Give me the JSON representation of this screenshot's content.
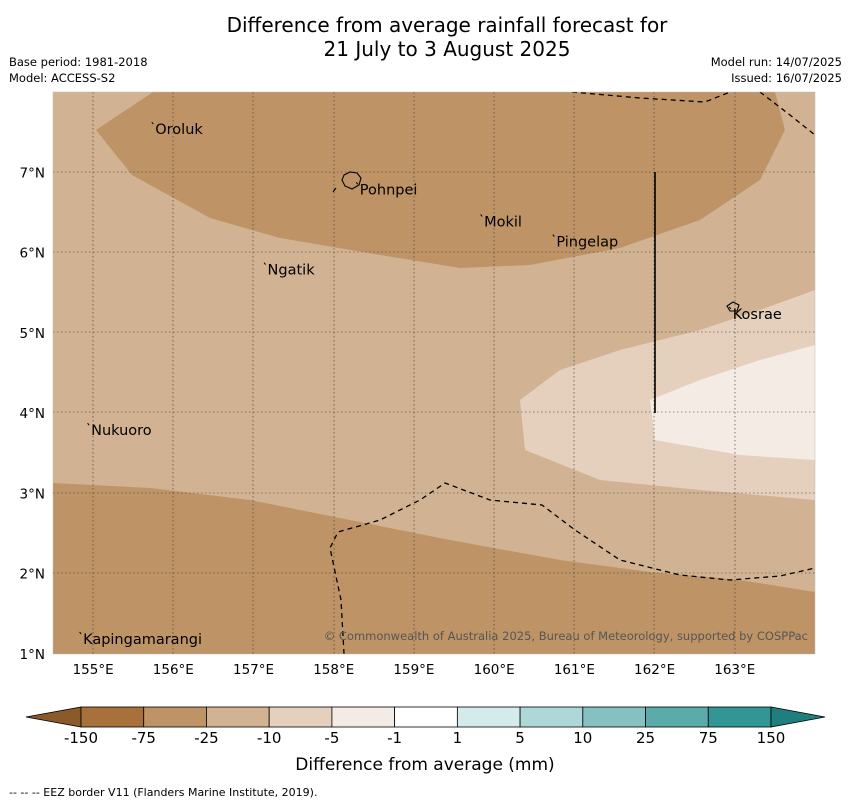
{
  "title": {
    "line1": "Difference from average rainfall forecast for",
    "line2": "21 July to 3 August 2025"
  },
  "meta": {
    "base_period": "Base period: 1981-2018",
    "model": "Model: ACCESS-S2",
    "model_run": "Model run: 14/07/2025",
    "issued": "Issued: 16/07/2025"
  },
  "map": {
    "lon_range": [
      154.5,
      164.0
    ],
    "lat_range": [
      1.0,
      8.0
    ],
    "x_ticks": [
      "155°E",
      "156°E",
      "157°E",
      "158°E",
      "159°E",
      "160°E",
      "161°E",
      "162°E",
      "163°E"
    ],
    "y_ticks": [
      "1°N",
      "2°N",
      "3°N",
      "4°N",
      "5°N",
      "6°N",
      "7°N"
    ],
    "gridlines": true,
    "places": [
      {
        "name": "Oroluk",
        "lon": 155.75,
        "lat": 7.6
      },
      {
        "name": "Pohnpei",
        "lon": 158.3,
        "lat": 6.85
      },
      {
        "name": "Mokil",
        "lon": 159.85,
        "lat": 6.45
      },
      {
        "name": "Pingelap",
        "lon": 160.75,
        "lat": 6.2
      },
      {
        "name": "Ngatik",
        "lon": 157.15,
        "lat": 5.85
      },
      {
        "name": "Kosrae",
        "lon": 162.95,
        "lat": 5.3
      },
      {
        "name": "Nukuoro",
        "lon": 154.95,
        "lat": 3.85
      },
      {
        "name": "Kapingamarangi",
        "lon": 154.85,
        "lat": 1.25
      }
    ],
    "copyright": "© Commonwealth of Australia 2025, Bureau of Meteorology, supported by COSPPac"
  },
  "colorbar": {
    "title": "Difference from average (mm)",
    "labels": [
      "-150",
      "-75",
      "-25",
      "-10",
      "-5",
      "-1",
      "1",
      "5",
      "10",
      "25",
      "75",
      "150"
    ],
    "colors": [
      "#a8713b",
      "#be9467",
      "#d1b393",
      "#e4d0bd",
      "#f4ece4",
      "#ffffff",
      "#d5eaea",
      "#aed7d7",
      "#84c1c0",
      "#5babaa",
      "#339696"
    ],
    "extend_low": "#8b5a2b",
    "extend_high": "#1f7f7f"
  },
  "footer": "--  --  -- EEZ border V11 (Flanders Marine Institute, 2019)."
}
